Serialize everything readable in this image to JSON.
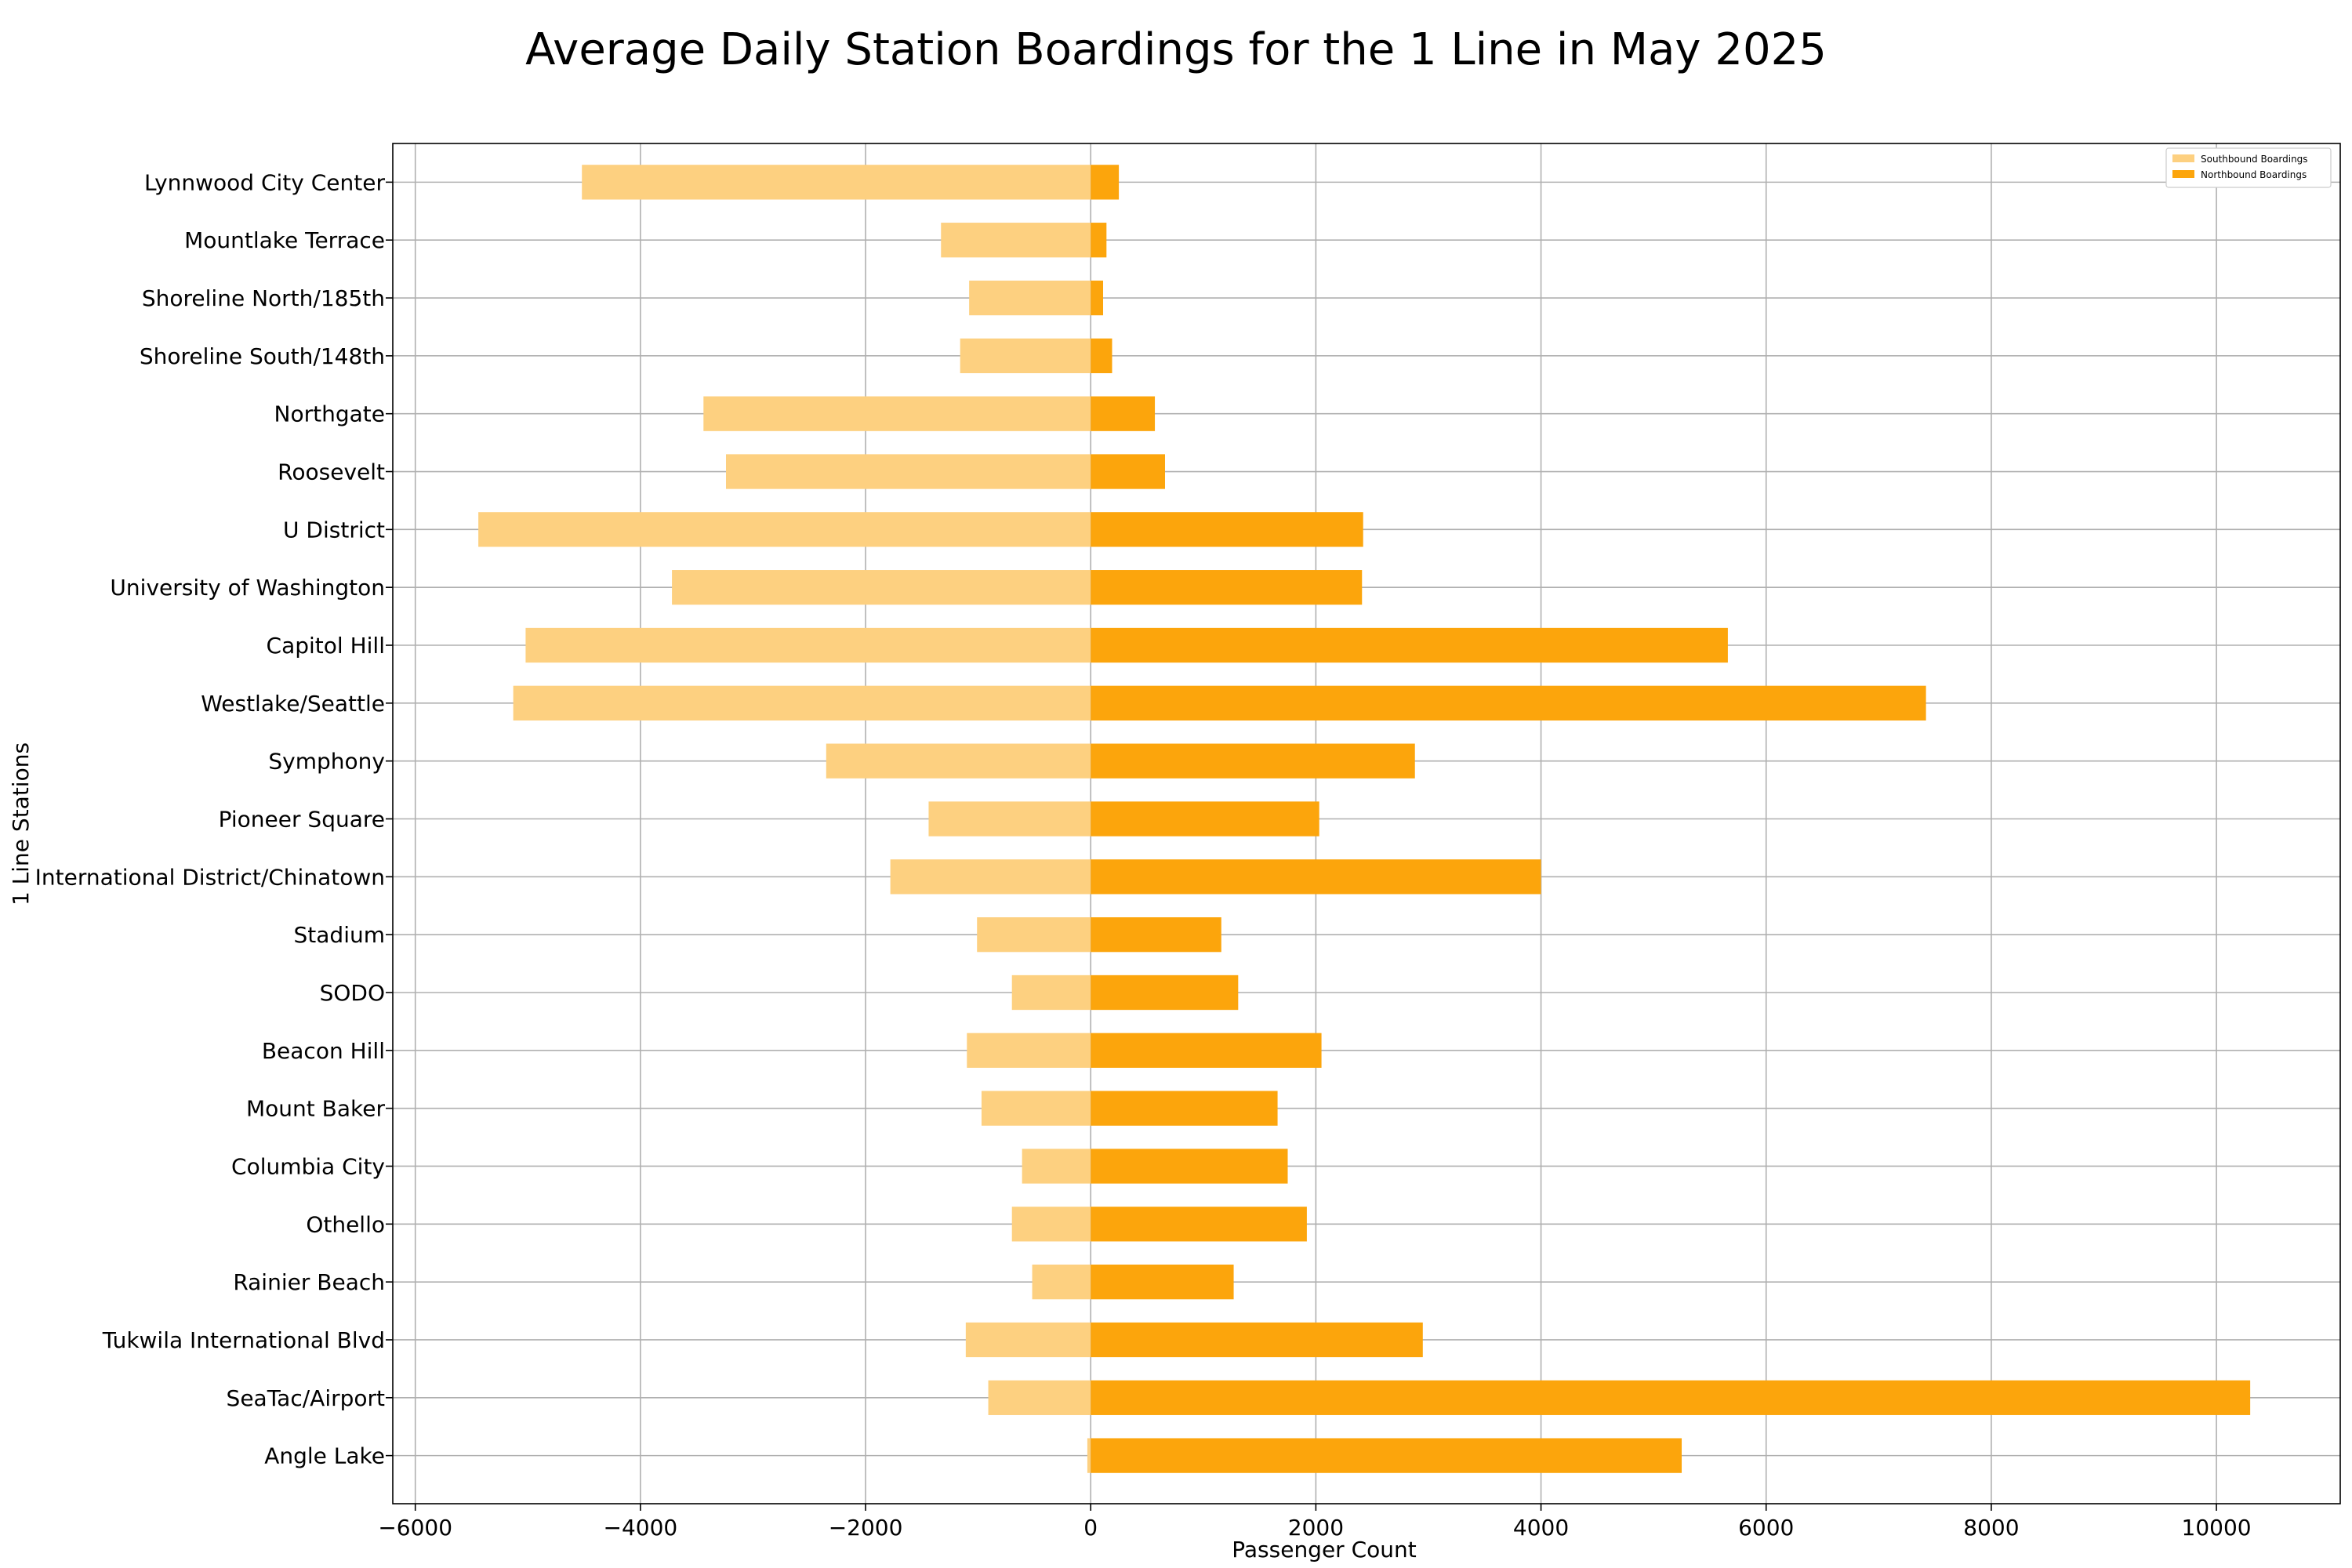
{
  "chart_data": {
    "type": "bar",
    "orientation": "horizontal",
    "title": "Average Daily Station Boardings for the 1 Line in May 2025",
    "xlabel": "Passenger Count",
    "ylabel": "1 Line Stations",
    "xlim": [
      -6200,
      11100
    ],
    "xticks": [
      -6000,
      -4000,
      -2000,
      0,
      2000,
      4000,
      6000,
      8000,
      10000
    ],
    "xtick_labels": [
      "−6000",
      "−4000",
      "−2000",
      "0",
      "2000",
      "4000",
      "6000",
      "8000",
      "10000"
    ],
    "grid": true,
    "legend_position": "top-right",
    "categories": [
      "Lynnwood City Center",
      "Mountlake Terrace",
      "Shoreline North/185th",
      "Shoreline South/148th",
      "Northgate",
      "Roosevelt",
      "U District",
      "University of Washington",
      "Capitol Hill",
      "Westlake/Seattle",
      "Symphony",
      "Pioneer Square",
      "International District/Chinatown",
      "Stadium",
      "SODO",
      "Beacon Hill",
      "Mount Baker",
      "Columbia City",
      "Othello",
      "Rainier Beach",
      "Tukwila International Blvd",
      "SeaTac/Airport",
      "Angle Lake"
    ],
    "series": [
      {
        "name": "Southbound Boardings",
        "color": "#fdd080",
        "values": [
          -4520,
          -1330,
          -1080,
          -1160,
          -3440,
          -3240,
          -5440,
          -3720,
          -5020,
          -5130,
          -2350,
          -1440,
          -1780,
          -1010,
          -700,
          -1100,
          -970,
          -610,
          -700,
          -520,
          -1110,
          -910,
          -30
        ]
      },
      {
        "name": "Northbound Boardings",
        "color": "#fca50c",
        "values": [
          250,
          140,
          110,
          190,
          570,
          660,
          2420,
          2410,
          5660,
          7420,
          2880,
          2030,
          4000,
          1160,
          1310,
          2050,
          1660,
          1750,
          1920,
          1270,
          2950,
          10300,
          5250
        ]
      }
    ]
  }
}
